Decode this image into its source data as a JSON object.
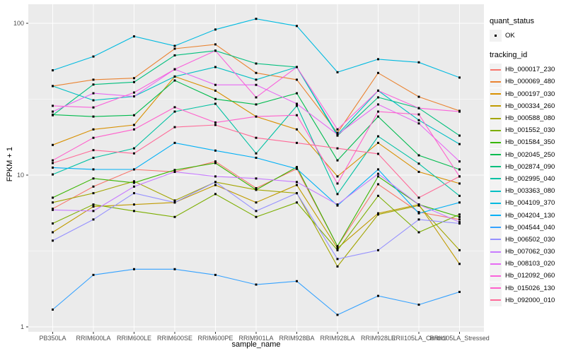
{
  "chart_data": {
    "type": "line",
    "title": "",
    "xlabel": "sample_name",
    "ylabel": "FPKM + 1",
    "y_scale": "log10",
    "y_tick_labels": [
      "1",
      "10",
      "100"
    ],
    "y_ticks": [
      1,
      10,
      100
    ],
    "y_minor_ticks": [
      3.162,
      31.62
    ],
    "ylim": [
      1,
      133
    ],
    "grid": "on",
    "legend_position": "right",
    "panel_bg": "#EBEBEB",
    "grid_color": "#FFFFFF",
    "tick_label_color": "#4D4D4D",
    "point_color": "#000000",
    "categories": [
      "PB350LA",
      "RRIM600LA",
      "RRIM600LE",
      "RRIM600SE",
      "RRIM600PE",
      "RRIM901LA",
      "RRIM928BA",
      "RRIM928LA",
      "RRIM928LE",
      "RRII105LA_Control",
      "RRII105LA_Stressed"
    ],
    "series": [
      {
        "name": "Hb_000017_230",
        "color": "#F8766D",
        "values": [
          6.0,
          8.4,
          10.9,
          10.5,
          12.3,
          8.2,
          11.0,
          3.4,
          8.7,
          5.7,
          5.1
        ]
      },
      {
        "name": "Hb_000069_480",
        "color": "#EA8331",
        "values": [
          38.6,
          42.5,
          43.5,
          68.0,
          72.6,
          47.1,
          42.5,
          19.0,
          47.1,
          32.8,
          26.5
        ]
      },
      {
        "name": "Hb_000197_030",
        "color": "#D89000",
        "values": [
          15.8,
          20.0,
          21.4,
          44.6,
          36.0,
          24.3,
          20.0,
          9.8,
          16.3,
          10.5,
          8.8
        ]
      },
      {
        "name": "Hb_000334_260",
        "color": "#C09B00",
        "values": [
          4.2,
          6.2,
          6.4,
          6.6,
          8.6,
          6.6,
          8.6,
          3.3,
          5.6,
          6.4,
          2.6
        ]
      },
      {
        "name": "Hb_000588_080",
        "color": "#A3A500",
        "values": [
          6.6,
          7.6,
          9.1,
          6.8,
          9.0,
          8.0,
          7.6,
          2.5,
          5.5,
          6.3,
          3.2
        ]
      },
      {
        "name": "Hb_001552_030",
        "color": "#7CAE00",
        "values": [
          4.8,
          6.4,
          5.8,
          5.3,
          7.5,
          5.3,
          6.6,
          3.2,
          7.3,
          4.2,
          5.5
        ]
      },
      {
        "name": "Hb_001584_350",
        "color": "#39B600",
        "values": [
          7.1,
          9.5,
          8.9,
          10.8,
          12.0,
          8.0,
          11.3,
          3.4,
          9.8,
          6.4,
          5.3
        ]
      },
      {
        "name": "Hb_002045_250",
        "color": "#00BB4E",
        "values": [
          25.0,
          24.3,
          24.8,
          42.0,
          31.7,
          29.2,
          34.6,
          12.5,
          24.3,
          13.5,
          10.9
        ]
      },
      {
        "name": "Hb_002874_090",
        "color": "#00BF7D",
        "values": [
          24.8,
          39.5,
          41.0,
          61.5,
          66.0,
          54.3,
          51.5,
          18.2,
          32.5,
          27.6,
          18.2
        ]
      },
      {
        "name": "Hb_002995_040",
        "color": "#00C1A3",
        "values": [
          10.1,
          13.0,
          15.0,
          26.2,
          29.5,
          13.9,
          28.6,
          7.5,
          18.0,
          11.9,
          7.3
        ]
      },
      {
        "name": "Hb_003363_080",
        "color": "#00BFC4",
        "values": [
          38.6,
          31.1,
          33.0,
          44.6,
          51.5,
          42.5,
          51.5,
          18.5,
          36.0,
          23.0,
          16.0
        ]
      },
      {
        "name": "Hb_004109_370",
        "color": "#00BAE0",
        "values": [
          49.0,
          60.4,
          82.0,
          71.0,
          91.0,
          107.0,
          96.0,
          47.6,
          58.0,
          55.3,
          43.9
        ]
      },
      {
        "name": "Hb_004204_130",
        "color": "#00B0F6",
        "values": [
          11.2,
          10.9,
          10.9,
          16.3,
          14.5,
          13.0,
          11.0,
          6.3,
          10.9,
          5.6,
          6.6
        ]
      },
      {
        "name": "Hb_004544_040",
        "color": "#35A2FF",
        "values": [
          1.3,
          2.2,
          2.4,
          2.4,
          2.2,
          1.9,
          2.0,
          1.2,
          1.6,
          1.4,
          1.7
        ]
      },
      {
        "name": "Hb_006502_030",
        "color": "#9590FF",
        "values": [
          3.7,
          5.1,
          7.6,
          6.6,
          9.0,
          5.8,
          7.6,
          2.8,
          3.2,
          5.1,
          4.8
        ]
      },
      {
        "name": "Hb_007062_030",
        "color": "#C77CFF",
        "values": [
          5.9,
          5.8,
          8.4,
          10.5,
          9.8,
          9.5,
          9.0,
          6.4,
          10.2,
          6.4,
          4.9
        ]
      },
      {
        "name": "Hb_008103_020",
        "color": "#E76BF3",
        "values": [
          26.2,
          34.6,
          33.0,
          49.8,
          39.3,
          39.3,
          29.5,
          18.5,
          29.2,
          21.9,
          12.3
        ]
      },
      {
        "name": "Hb_012092_060",
        "color": "#FA62DB",
        "values": [
          28.6,
          27.9,
          35.0,
          49.8,
          66.0,
          32.5,
          51.5,
          20.0,
          36.0,
          27.6,
          26.2
        ]
      },
      {
        "name": "Hb_015026_130",
        "color": "#FF61CC",
        "values": [
          12.5,
          17.6,
          20.0,
          28.0,
          22.2,
          24.3,
          24.8,
          8.8,
          26.2,
          25.1,
          9.8
        ]
      },
      {
        "name": "Hb_092000_010",
        "color": "#FF6A98",
        "values": [
          12.0,
          14.6,
          13.9,
          20.7,
          21.4,
          17.6,
          16.3,
          15.0,
          13.8,
          7.1,
          9.8
        ]
      }
    ],
    "legend": {
      "quant_status_title": "quant_status",
      "quant_status_items": [
        {
          "label": "OK",
          "symbol": "point"
        }
      ],
      "tracking_id_title": "tracking_id"
    }
  }
}
